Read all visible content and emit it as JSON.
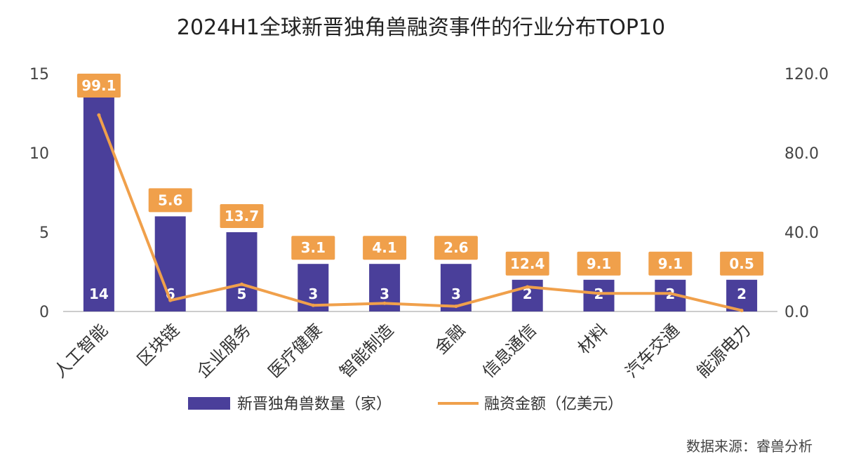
{
  "chart_data": {
    "type": "bar",
    "title": "2024H1全球新晋独角兽融资事件的行业分布TOP10",
    "categories": [
      "人工智能",
      "区块链",
      "企业服务",
      "医疗健康",
      "智能制造",
      "金融",
      "信息通信",
      "材料",
      "汽车交通",
      "能源电力"
    ],
    "series": [
      {
        "name": "新晋独角兽数量（家）",
        "kind": "bar",
        "axis": "left",
        "values": [
          14,
          6,
          5,
          3,
          3,
          3,
          2,
          2,
          2,
          2
        ]
      },
      {
        "name": "融资金额（亿美元）",
        "kind": "line",
        "axis": "right",
        "values": [
          99.1,
          5.6,
          13.7,
          3.1,
          4.1,
          2.6,
          12.4,
          9.1,
          9.1,
          0.5
        ]
      }
    ],
    "bar_labels": [
      "14",
      "6",
      "5",
      "3",
      "3",
      "3",
      "2",
      "2",
      "2",
      "2"
    ],
    "line_labels": [
      "99.1",
      "5.6",
      "13.7",
      "3.1",
      "4.1",
      "2.6",
      "12.4",
      "9.1",
      "9.1",
      "0.5"
    ],
    "y_left": {
      "ticks": [
        0,
        5,
        10,
        15
      ],
      "tick_labels": [
        "0",
        "5",
        "10",
        "15"
      ],
      "ylim": [
        0,
        15
      ]
    },
    "y_right": {
      "ticks": [
        0,
        40,
        80,
        120
      ],
      "tick_labels": [
        "0.0",
        "40.0",
        "80.0",
        "120.0"
      ],
      "ylim": [
        0,
        120
      ]
    },
    "legend_position": "bottom",
    "colors": {
      "bar": "#4a3f9a",
      "line": "#f0a04b",
      "label_box": "#f0a04b",
      "axis": "#bbbbbb"
    }
  },
  "source": "数据来源：睿兽分析"
}
